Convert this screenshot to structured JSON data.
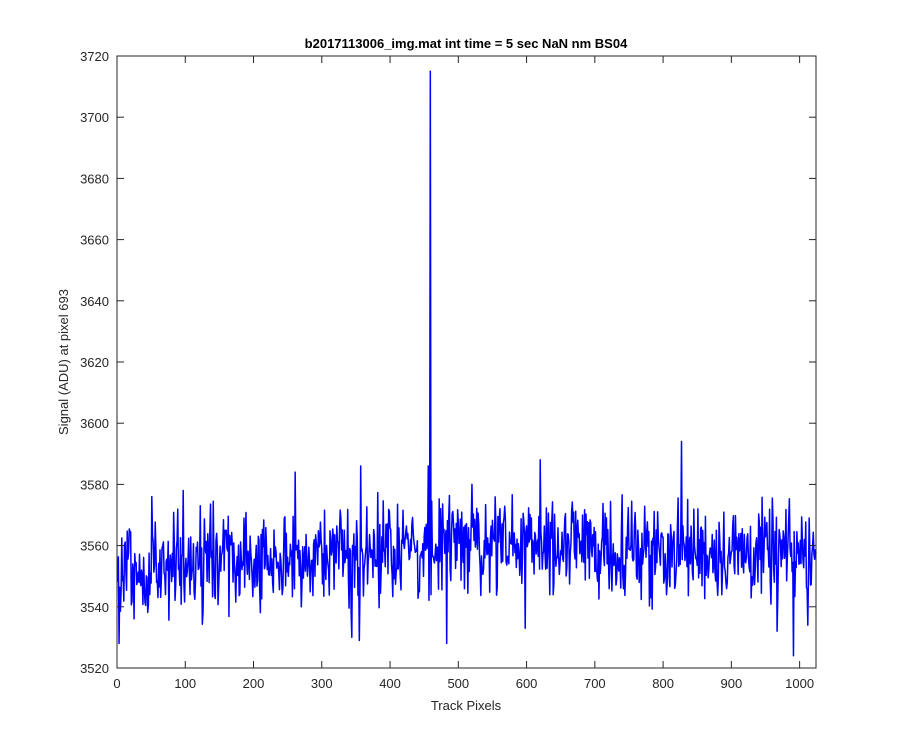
{
  "chart_data": {
    "type": "line",
    "title": "b2017113006_img.mat int time = 5 sec  NaN nm BS04",
    "xlabel": "Track Pixels",
    "ylabel": "Signal (ADU) at pixel 693",
    "xlim": [
      0,
      1024
    ],
    "ylim": [
      3520,
      3720
    ],
    "xticks": [
      0,
      100,
      200,
      300,
      400,
      500,
      600,
      700,
      800,
      900,
      1000
    ],
    "yticks": [
      3520,
      3540,
      3560,
      3580,
      3600,
      3620,
      3640,
      3660,
      3680,
      3700,
      3720
    ],
    "grid": false,
    "line_color": "#0000ff",
    "series": [
      {
        "x_start": 1,
        "x_step": 1,
        "length": 1024,
        "baseline_left": 3552,
        "baseline_mid": 3561,
        "baseline_right": 3557,
        "noise_range": [
          3528,
          3588
        ],
        "features": [
          {
            "x": 459,
            "y": 3715
          },
          {
            "x": 827,
            "y": 3594
          },
          {
            "x": 991,
            "y": 3524
          },
          {
            "x": 3,
            "y": 3528
          },
          {
            "x": 483,
            "y": 3528
          },
          {
            "x": 355,
            "y": 3529
          },
          {
            "x": 344,
            "y": 3530
          },
          {
            "x": 967,
            "y": 3532
          },
          {
            "x": 1012,
            "y": 3534
          },
          {
            "x": 598,
            "y": 3533
          },
          {
            "x": 620,
            "y": 3588
          },
          {
            "x": 357,
            "y": 3586
          },
          {
            "x": 456,
            "y": 3586
          },
          {
            "x": 261,
            "y": 3584
          },
          {
            "x": 51,
            "y": 3576
          },
          {
            "x": 97,
            "y": 3578
          }
        ]
      }
    ]
  }
}
